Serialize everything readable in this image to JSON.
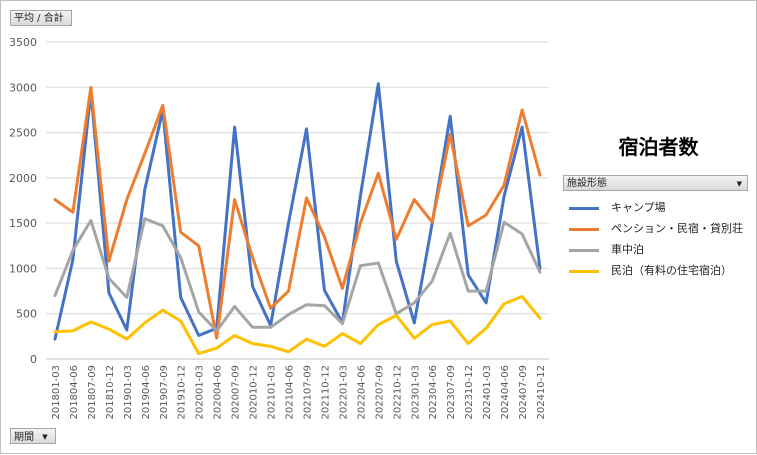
{
  "value_field": "平均 / 合計",
  "period_field": "期間",
  "legend_field": "施設形態",
  "chart_data": {
    "type": "line",
    "title": "宿泊者数",
    "xlabel": "",
    "ylabel": "",
    "ylim": [
      0,
      3500
    ],
    "yticks": [
      0,
      500,
      1000,
      1500,
      2000,
      2500,
      3000,
      3500
    ],
    "grid": true,
    "legend_position": "right",
    "categories": [
      "201801-03",
      "201804-06",
      "201807-09",
      "201810-12",
      "201901-03",
      "201904-06",
      "201907-09",
      "201910-12",
      "202001-03",
      "202004-06",
      "202007-09",
      "202010-12",
      "202101-03",
      "202104-06",
      "202107-09",
      "202110-12",
      "202201-03",
      "202204-06",
      "202207-09",
      "202210-12",
      "202301-03",
      "202304-06",
      "202307-09",
      "202310-12",
      "202401-03",
      "202404-06",
      "202407-09",
      "202410-12"
    ],
    "series": [
      {
        "name": "キャンプ場",
        "color": "#4472c4",
        "values": [
          220,
          1100,
          2950,
          730,
          320,
          1870,
          2750,
          680,
          260,
          340,
          2560,
          800,
          370,
          1500,
          2540,
          760,
          400,
          1800,
          3040,
          1080,
          400,
          1500,
          2680,
          930,
          620,
          1800,
          2560,
          1000
        ]
      },
      {
        "name": "ペンション・民宿・貸別荘",
        "color": "#ed7d31",
        "values": [
          1760,
          1620,
          3000,
          1080,
          1760,
          2270,
          2800,
          1400,
          1250,
          230,
          1760,
          1120,
          560,
          750,
          1780,
          1350,
          780,
          1500,
          2050,
          1320,
          1760,
          1510,
          2480,
          1470,
          1590,
          1920,
          2750,
          2030
        ]
      },
      {
        "name": "車中泊",
        "color": "#a5a5a5",
        "values": [
          700,
          1200,
          1530,
          890,
          680,
          1550,
          1470,
          1120,
          520,
          310,
          580,
          350,
          350,
          490,
          600,
          590,
          390,
          1030,
          1060,
          500,
          620,
          860,
          1390,
          750,
          750,
          1510,
          1380,
          960
        ]
      },
      {
        "name": "民泊（有料の住宅宿泊）",
        "color": "#ffc000",
        "values": [
          300,
          310,
          410,
          330,
          220,
          400,
          540,
          420,
          60,
          120,
          260,
          170,
          140,
          80,
          220,
          140,
          280,
          170,
          380,
          480,
          230,
          380,
          420,
          170,
          340,
          610,
          690,
          450
        ]
      }
    ]
  }
}
